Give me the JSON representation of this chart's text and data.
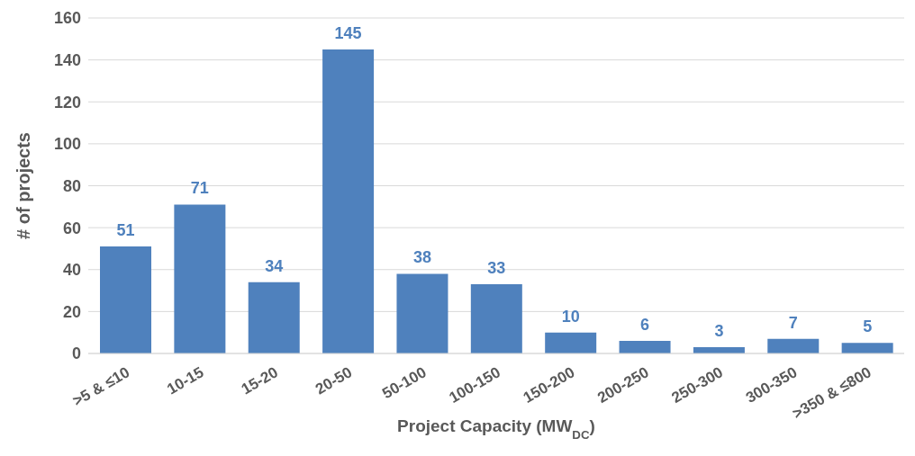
{
  "chart_data": {
    "type": "bar",
    "xlabel": "Project Capacity (MW$_{DC}$)",
    "ylabel": "# of projects",
    "categories": [
      ">5 & ≤10",
      "10-15",
      "15-20",
      "20-50",
      "50-100",
      "100-150",
      "150-200",
      "200-250",
      "250-300",
      "300-350",
      ">350 & ≤800"
    ],
    "values": [
      51,
      71,
      34,
      145,
      38,
      33,
      10,
      6,
      3,
      7,
      5
    ],
    "color": "#4f81bd",
    "ylim": [
      0,
      160
    ],
    "yticks": [
      0,
      20,
      40,
      60,
      80,
      100,
      120,
      140,
      160
    ],
    "grid": "y",
    "data_labels": true
  }
}
